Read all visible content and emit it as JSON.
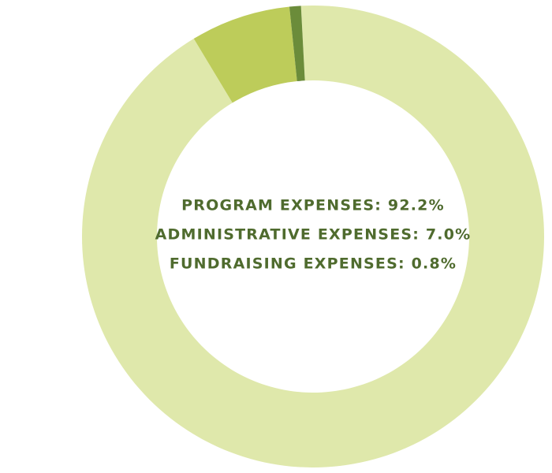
{
  "chart_data": {
    "type": "pie",
    "title": "",
    "donut": true,
    "start_angle_deg": 93,
    "direction": "counterclockwise",
    "slices": [
      {
        "label": "PROGRAM EXPENSES",
        "value": 92.2,
        "display": "92.2%",
        "color": "#dfe8ab"
      },
      {
        "label": "ADMINISTRATIVE EXPENSES",
        "value": 7.0,
        "display": "7.0%",
        "color": "#bdcc5a"
      },
      {
        "label": "FUNDRAISING EXPENSES",
        "value": 0.8,
        "display": "0.8%",
        "color": "#6b8c3a"
      }
    ],
    "label_color": "#4f6b2e",
    "legend": "center"
  }
}
